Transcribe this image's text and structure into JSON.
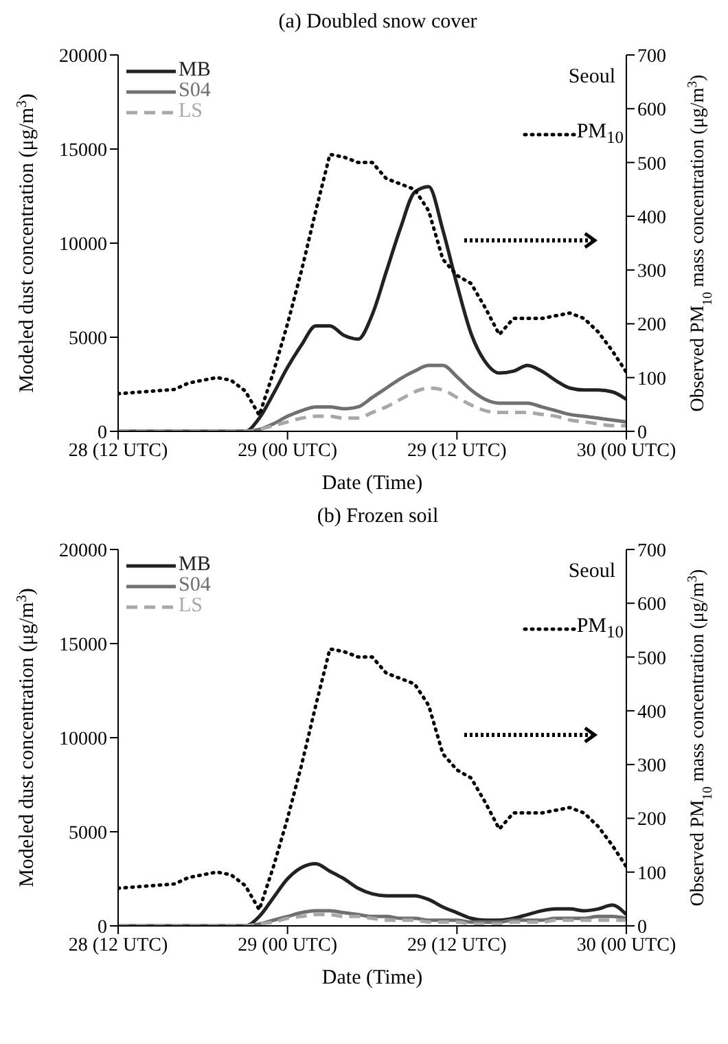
{
  "chart_data": [
    {
      "type": "line",
      "title": "(a) Doubled snow cover",
      "xlabel": "Date (Time)",
      "ylabel": "Modeled dust concentration (μg/m$^{3}$)",
      "y2label": "Observed PM$_{10}$ mass concentration (μg/m$^{3}$)",
      "categories": [
        "28 (12 UTC)",
        null,
        null,
        null,
        null,
        null,
        null,
        null,
        null,
        null,
        null,
        null,
        "29 (00 UTC)",
        null,
        null,
        null,
        null,
        null,
        null,
        null,
        null,
        null,
        null,
        null,
        "29 (12 UTC)",
        null,
        null,
        null,
        null,
        null,
        null,
        null,
        null,
        null,
        null,
        null,
        "30 (00 UTC)"
      ],
      "ylim": [
        0,
        20000
      ],
      "yticks": [
        0,
        5000,
        10000,
        15000,
        20000
      ],
      "y2lim": [
        0,
        700
      ],
      "y2ticks": [
        0,
        100,
        200,
        300,
        400,
        500,
        600,
        700
      ],
      "legend": "top left",
      "grid": false,
      "annotations": [
        "Seoul"
      ],
      "series": [
        {
          "name": "MB",
          "color": "#222222",
          "line_style": "solid",
          "values": [
            0,
            0,
            0,
            0,
            0,
            0,
            0,
            0,
            0,
            0,
            700,
            2000,
            3400,
            4600,
            5600,
            5600,
            5100,
            4900,
            6200,
            8500,
            10800,
            12700,
            13000,
            10700,
            7800,
            5200,
            3700,
            3100,
            3200,
            3500,
            3200,
            2700,
            2300,
            2200,
            2200,
            2100,
            1700
          ]
        },
        {
          "name": "S04",
          "color": "#707070",
          "line_style": "solid",
          "values": [
            0,
            0,
            0,
            0,
            0,
            0,
            0,
            0,
            0,
            0,
            100,
            400,
            800,
            1100,
            1300,
            1300,
            1200,
            1300,
            1800,
            2300,
            2800,
            3200,
            3500,
            3500,
            2900,
            2200,
            1700,
            1500,
            1500,
            1500,
            1300,
            1100,
            900,
            800,
            700,
            600,
            500
          ]
        },
        {
          "name": "LS",
          "color": "#a8a8a8",
          "line_style": "dashed",
          "values": [
            0,
            0,
            0,
            0,
            0,
            0,
            0,
            0,
            0,
            0,
            100,
            300,
            500,
            700,
            800,
            800,
            700,
            700,
            1000,
            1300,
            1700,
            2100,
            2300,
            2200,
            1800,
            1400,
            1100,
            1000,
            1000,
            1000,
            900,
            800,
            600,
            500,
            400,
            300,
            300
          ]
        },
        {
          "name": "PM$_{10}$",
          "color": "#000000",
          "line_style": "dotted",
          "axis": "y2",
          "values": [
            70,
            72,
            74,
            76,
            78,
            90,
            95,
            100,
            95,
            75,
            30,
            110,
            200,
            300,
            410,
            515,
            510,
            500,
            500,
            470,
            460,
            450,
            410,
            320,
            290,
            275,
            230,
            180,
            210,
            210,
            210,
            215,
            220,
            210,
            185,
            150,
            110
          ]
        }
      ]
    },
    {
      "type": "line",
      "title": "(b) Frozen soil",
      "xlabel": "Date (Time)",
      "ylabel": "Modeled dust concentration (μg/m$^{3}$)",
      "y2label": "Observed PM$_{10}$ mass concentration (μg/m$^{3}$)",
      "categories": [
        "28 (12 UTC)",
        null,
        null,
        null,
        null,
        null,
        null,
        null,
        null,
        null,
        null,
        null,
        "29 (00 UTC)",
        null,
        null,
        null,
        null,
        null,
        null,
        null,
        null,
        null,
        null,
        null,
        "29 (12 UTC)",
        null,
        null,
        null,
        null,
        null,
        null,
        null,
        null,
        null,
        null,
        null,
        "30 (00 UTC)"
      ],
      "ylim": [
        0,
        20000
      ],
      "yticks": [
        0,
        5000,
        10000,
        15000,
        20000
      ],
      "y2lim": [
        0,
        700
      ],
      "y2ticks": [
        0,
        100,
        200,
        300,
        400,
        500,
        600,
        700
      ],
      "legend": "top left",
      "grid": false,
      "annotations": [
        "Seoul"
      ],
      "series": [
        {
          "name": "MB",
          "color": "#222222",
          "line_style": "solid",
          "values": [
            0,
            0,
            0,
            0,
            0,
            0,
            0,
            0,
            0,
            0,
            500,
            1500,
            2500,
            3100,
            3300,
            2900,
            2500,
            2000,
            1700,
            1600,
            1600,
            1600,
            1400,
            1000,
            700,
            400,
            300,
            300,
            400,
            600,
            800,
            900,
            900,
            800,
            900,
            1100,
            600
          ]
        },
        {
          "name": "S04",
          "color": "#707070",
          "line_style": "solid",
          "values": [
            0,
            0,
            0,
            0,
            0,
            0,
            0,
            0,
            0,
            0,
            100,
            300,
            500,
            700,
            800,
            800,
            700,
            600,
            500,
            500,
            400,
            400,
            300,
            300,
            300,
            200,
            200,
            200,
            300,
            300,
            300,
            400,
            400,
            400,
            500,
            500,
            400
          ]
        },
        {
          "name": "LS",
          "color": "#a8a8a8",
          "line_style": "dashed",
          "values": [
            0,
            0,
            0,
            0,
            0,
            0,
            0,
            0,
            0,
            0,
            100,
            200,
            400,
            500,
            600,
            600,
            500,
            500,
            400,
            300,
            300,
            300,
            200,
            200,
            200,
            100,
            100,
            100,
            200,
            200,
            200,
            300,
            300,
            300,
            300,
            300,
            300
          ]
        },
        {
          "name": "PM$_{10}$",
          "color": "#000000",
          "line_style": "dotted",
          "axis": "y2",
          "values": [
            70,
            72,
            74,
            76,
            78,
            90,
            95,
            100,
            95,
            75,
            30,
            110,
            200,
            300,
            410,
            515,
            510,
            500,
            500,
            470,
            460,
            450,
            410,
            320,
            290,
            275,
            230,
            180,
            210,
            210,
            210,
            215,
            220,
            210,
            185,
            150,
            110
          ]
        }
      ]
    }
  ]
}
